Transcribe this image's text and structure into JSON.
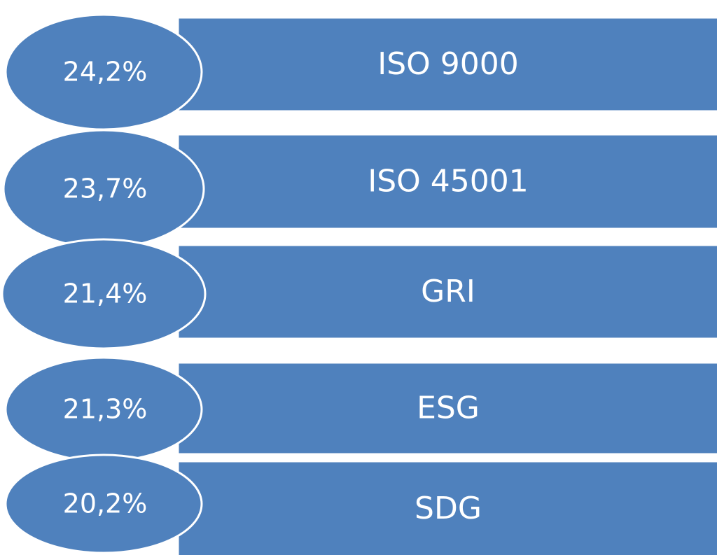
{
  "items": [
    {
      "percent": "24,2%",
      "label": "ISO 9000"
    },
    {
      "percent": "23,7%",
      "label": "ISO 45001"
    },
    {
      "percent": "21,4%",
      "label": "GRI"
    },
    {
      "percent": "21,3%",
      "label": "ESG"
    },
    {
      "percent": "20,2%",
      "label": "SDG"
    }
  ]
}
